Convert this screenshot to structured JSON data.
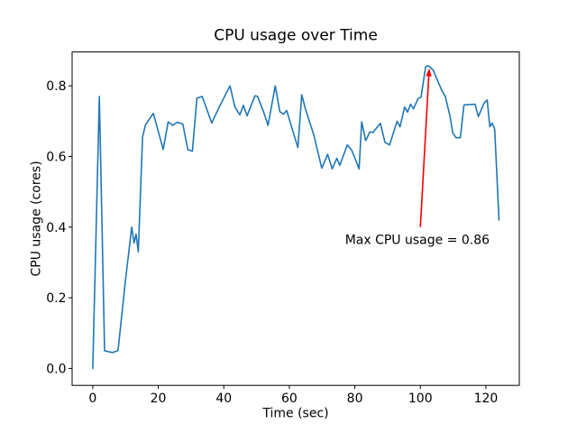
{
  "figure": {
    "background": "#ffffff"
  },
  "chart_data": {
    "type": "line",
    "title": "CPU usage over Time",
    "xlabel": "Time (sec)",
    "ylabel": "CPU usage (cores)",
    "grid": false,
    "legend": null,
    "line_color": "#1f77b4",
    "xlim": [
      -6.3,
      130.2
    ],
    "ylim": [
      -0.048,
      0.896
    ],
    "x_tick_values": [
      0,
      20,
      40,
      60,
      80,
      100,
      120
    ],
    "x_tick_labels": [
      "0",
      "20",
      "40",
      "60",
      "80",
      "100",
      "120"
    ],
    "y_tick_values": [
      0.0,
      0.2,
      0.4,
      0.6,
      0.8
    ],
    "y_tick_labels": [
      "0.0",
      "0.2",
      "0.4",
      "0.6",
      "0.8"
    ],
    "x": [
      0,
      2,
      3.6,
      6,
      7.7,
      10,
      11.9,
      12.6,
      13.2,
      13.9,
      15.2,
      16.1,
      18.5,
      21.5,
      23,
      24.4,
      25.8,
      27.5,
      29,
      30.4,
      31.8,
      33.4,
      36.3,
      38.6,
      41.9,
      43.4,
      44.9,
      46,
      47.1,
      49.5,
      50.3,
      52.2,
      53.5,
      55.7,
      57.1,
      58.2,
      59.2,
      62.6,
      63.8,
      64.9,
      67.5,
      69.9,
      71.7,
      73.1,
      74.5,
      75.4,
      77.7,
      79.1,
      81.3,
      82.1,
      83.3,
      84.6,
      85.5,
      87.8,
      89.2,
      90.6,
      92.9,
      93.8,
      95.2,
      96.1,
      97,
      97.9,
      99.3,
      100.2,
      101.6,
      102.5,
      103.9,
      106.6,
      107.6,
      109,
      109.9,
      110.9,
      112.2,
      113.3,
      116.7,
      117.7,
      119.5,
      120.4,
      121.2,
      121.9,
      122.7,
      124
    ],
    "y": [
      0.0,
      0.77,
      0.05,
      0.045,
      0.05,
      0.25,
      0.4,
      0.355,
      0.38,
      0.33,
      0.655,
      0.69,
      0.722,
      0.62,
      0.698,
      0.688,
      0.697,
      0.692,
      0.62,
      0.615,
      0.765,
      0.77,
      0.695,
      0.74,
      0.8,
      0.74,
      0.718,
      0.745,
      0.715,
      0.772,
      0.77,
      0.725,
      0.688,
      0.8,
      0.727,
      0.72,
      0.73,
      0.625,
      0.775,
      0.735,
      0.66,
      0.567,
      0.606,
      0.565,
      0.595,
      0.575,
      0.633,
      0.617,
      0.565,
      0.698,
      0.645,
      0.67,
      0.668,
      0.694,
      0.64,
      0.633,
      0.7,
      0.684,
      0.74,
      0.726,
      0.748,
      0.735,
      0.764,
      0.768,
      0.854,
      0.857,
      0.845,
      0.786,
      0.77,
      0.716,
      0.667,
      0.653,
      0.653,
      0.746,
      0.748,
      0.713,
      0.752,
      0.76,
      0.684,
      0.695,
      0.677,
      0.42
    ],
    "annotation": {
      "text": "Max CPU usage = 0.86",
      "color": "#ff0000",
      "max_value": 0.86,
      "text_xy": [
        77,
        0.352
      ],
      "arrow_from": [
        100,
        0.4
      ],
      "arrow_to": [
        102.7,
        0.85
      ]
    }
  }
}
